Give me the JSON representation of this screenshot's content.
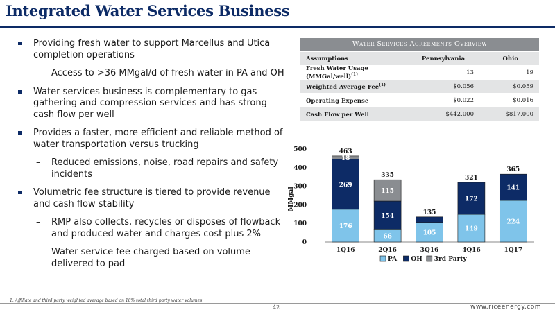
{
  "title": "Integrated Water Services Business",
  "bullets": [
    {
      "level": 1,
      "text": "Providing fresh water to support Marcellus and Utica completion operations"
    },
    {
      "level": 2,
      "text": "Access to >36 MMgal/d of fresh water in PA and OH"
    },
    {
      "level": 1,
      "text": "Water services business is complementary to gas gathering and compression services and has strong cash flow per well"
    },
    {
      "level": 1,
      "text": "Provides a faster, more efficient and reliable method of water transportation versus trucking"
    },
    {
      "level": 2,
      "text": "Reduced emissions, noise, road repairs and safety incidents"
    },
    {
      "level": 1,
      "text": "Volumetric fee structure is tiered to provide revenue and cash flow stability"
    },
    {
      "level": 2,
      "text": "RMP also collects, recycles or disposes of flowback and produced water and charges cost plus 2%"
    },
    {
      "level": 2,
      "text": "Water service fee charged based on volume delivered to pad"
    }
  ],
  "table": {
    "title": "Water Services Agreements Overview",
    "headers": [
      "Assumptions",
      "Pennsylvania",
      "Ohio"
    ],
    "rows": [
      {
        "label": "Fresh Water Usage (MMGal/well)",
        "sup": "(1)",
        "pa": "13",
        "oh": "19"
      },
      {
        "label": "Weighted Average Fee",
        "sup": "(1)",
        "pa": "$0.056",
        "oh": "$0.059"
      },
      {
        "label": "Operating Expense",
        "sup": "",
        "pa": "$0.022",
        "oh": "$0.016"
      },
      {
        "label": "Cash Flow per Well",
        "sup": "",
        "pa": "$442,000",
        "oh": "$817,000"
      }
    ]
  },
  "chart_data": {
    "type": "bar",
    "stacked": true,
    "categories": [
      "1Q16",
      "2Q16",
      "3Q16",
      "4Q16",
      "1Q17"
    ],
    "series": [
      {
        "name": "PA",
        "color": "#7fc4ea",
        "values": [
          176,
          66,
          105,
          149,
          224
        ]
      },
      {
        "name": "OH",
        "color": "#0d2b66",
        "values": [
          269,
          154,
          30,
          172,
          141
        ]
      },
      {
        "name": "3rd Party",
        "color": "#8a8d91",
        "values": [
          18,
          115,
          0,
          0,
          0
        ]
      }
    ],
    "segment_labels": [
      [
        "176",
        "269",
        "18"
      ],
      [
        "66",
        "154",
        "115"
      ],
      [
        "105",
        "",
        ""
      ],
      [
        "149",
        "172",
        ""
      ],
      [
        "224",
        "141",
        ""
      ]
    ],
    "totals": [
      463,
      335,
      135,
      321,
      365
    ],
    "ylabel": "MMgal",
    "ylim": [
      0,
      500
    ],
    "yticks": [
      0,
      100,
      200,
      300,
      400,
      500
    ],
    "legend_position": "bottom"
  },
  "footnote": "1.     Affiliate and third party weighted average based on 18% total third party water volumes.",
  "page_number": "42",
  "website": "www.riceenergy.com"
}
